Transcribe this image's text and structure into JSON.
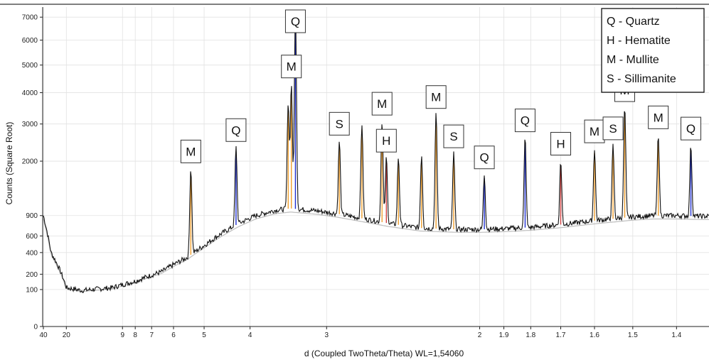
{
  "chart_data": {
    "type": "line",
    "xlabel": "d (Coupled TwoTheta/Theta) WL=1,54060",
    "ylabel": "Counts (Square Root)",
    "x_scale": "reciprocal (d-spacing, 2-theta axis)",
    "y_scale": "square root",
    "xlim": [
      40,
      1.35
    ],
    "ylim": [
      0,
      7200
    ],
    "x_ticks": [
      {
        "value": 40,
        "label": "40"
      },
      {
        "value": 20,
        "label": "20"
      },
      {
        "value": 9,
        "label": "9"
      },
      {
        "value": 8,
        "label": "8"
      },
      {
        "value": 7,
        "label": "7"
      },
      {
        "value": 6,
        "label": "6"
      },
      {
        "value": 5,
        "label": "5"
      },
      {
        "value": 4,
        "label": "4"
      },
      {
        "value": 3,
        "label": "3"
      },
      {
        "value": 2,
        "label": "2"
      },
      {
        "value": 1.9,
        "label": "1.9"
      },
      {
        "value": 1.8,
        "label": "1.8"
      },
      {
        "value": 1.7,
        "label": "1.7"
      },
      {
        "value": 1.6,
        "label": "1.6"
      },
      {
        "value": 1.5,
        "label": "1.5"
      },
      {
        "value": 1.4,
        "label": "1.4"
      }
    ],
    "y_ticks": [
      {
        "value": 0,
        "label": "0"
      },
      {
        "value": 100,
        "label": "100"
      },
      {
        "value": 200,
        "label": "200"
      },
      {
        "value": 400,
        "label": "400"
      },
      {
        "value": 600,
        "label": "600"
      },
      {
        "value": 900,
        "label": "900"
      },
      {
        "value": 2000,
        "label": "2000"
      },
      {
        "value": 3000,
        "label": "3000"
      },
      {
        "value": 4000,
        "label": "4000"
      },
      {
        "value": 5000,
        "label": "5000"
      },
      {
        "value": 6000,
        "label": "6000"
      },
      {
        "value": 7000,
        "label": "7000"
      }
    ],
    "background": [
      {
        "d": 40,
        "y": 900
      },
      {
        "d": 30,
        "y": 400
      },
      {
        "d": 20,
        "y": 110
      },
      {
        "d": 15,
        "y": 95
      },
      {
        "d": 10,
        "y": 110
      },
      {
        "d": 8,
        "y": 150
      },
      {
        "d": 6.5,
        "y": 220
      },
      {
        "d": 5.5,
        "y": 350
      },
      {
        "d": 5,
        "y": 480
      },
      {
        "d": 4.6,
        "y": 620
      },
      {
        "d": 4.2,
        "y": 780
      },
      {
        "d": 3.9,
        "y": 900
      },
      {
        "d": 3.6,
        "y": 990
      },
      {
        "d": 3.4,
        "y": 1020
      },
      {
        "d": 3.1,
        "y": 980
      },
      {
        "d": 2.9,
        "y": 930
      },
      {
        "d": 2.7,
        "y": 860
      },
      {
        "d": 2.5,
        "y": 780
      },
      {
        "d": 2.3,
        "y": 710
      },
      {
        "d": 2.1,
        "y": 690
      },
      {
        "d": 2.0,
        "y": 690
      },
      {
        "d": 1.9,
        "y": 700
      },
      {
        "d": 1.8,
        "y": 720
      },
      {
        "d": 1.7,
        "y": 760
      },
      {
        "d": 1.6,
        "y": 820
      },
      {
        "d": 1.5,
        "y": 880
      },
      {
        "d": 1.45,
        "y": 900
      },
      {
        "d": 1.4,
        "y": 900
      },
      {
        "d": 1.35,
        "y": 890
      }
    ],
    "peaks": [
      {
        "d": 5.39,
        "height": 1450,
        "color": "#f0a030",
        "label": "M"
      },
      {
        "d": 4.26,
        "height": 1600,
        "color": "#2030d0",
        "label": "Q"
      },
      {
        "d": 3.43,
        "height": 2700,
        "color": "#f0a030",
        "label": null
      },
      {
        "d": 3.39,
        "height": 3300,
        "color": "#f0a030",
        "label": "M"
      },
      {
        "d": 3.34,
        "height": 6200,
        "color": "#2030d0",
        "label": "Q"
      },
      {
        "d": 2.88,
        "height": 1600,
        "color": "#f0a030",
        "label": "S"
      },
      {
        "d": 2.69,
        "height": 2150,
        "color": "#f0a030",
        "label": null
      },
      {
        "d": 2.54,
        "height": 2300,
        "color": "#f0a030",
        "label": "M"
      },
      {
        "d": 2.51,
        "height": 1300,
        "color": "#d04040",
        "label": "H"
      },
      {
        "d": 2.43,
        "height": 1350,
        "color": "#f0a030",
        "label": null
      },
      {
        "d": 2.29,
        "height": 1450,
        "color": "#f0a030",
        "label": null
      },
      {
        "d": 2.21,
        "height": 2600,
        "color": "#f0a030",
        "label": "M"
      },
      {
        "d": 2.12,
        "height": 1500,
        "color": "#f0a030",
        "label": "S"
      },
      {
        "d": 1.98,
        "height": 1000,
        "color": "#2030d0",
        "label": "Q"
      },
      {
        "d": 1.82,
        "height": 1900,
        "color": "#2030d0",
        "label": "Q"
      },
      {
        "d": 1.7,
        "height": 1250,
        "color": "#d04040",
        "label": "H"
      },
      {
        "d": 1.6,
        "height": 1500,
        "color": "#f0a030",
        "label": "M"
      },
      {
        "d": 1.55,
        "height": 1550,
        "color": "#f0a030",
        "label": "S"
      },
      {
        "d": 1.52,
        "height": 2650,
        "color": "#f0a030",
        "label": "M"
      },
      {
        "d": 1.44,
        "height": 1800,
        "color": "#f0a030",
        "label": "M"
      },
      {
        "d": 1.37,
        "height": 1500,
        "color": "#2030d0",
        "label": "Q"
      }
    ],
    "legend": {
      "position": "top-right",
      "entries": [
        "Q - Quartz",
        "H - Hematite",
        "M - Mullite",
        "S - Sillimanite"
      ]
    }
  }
}
